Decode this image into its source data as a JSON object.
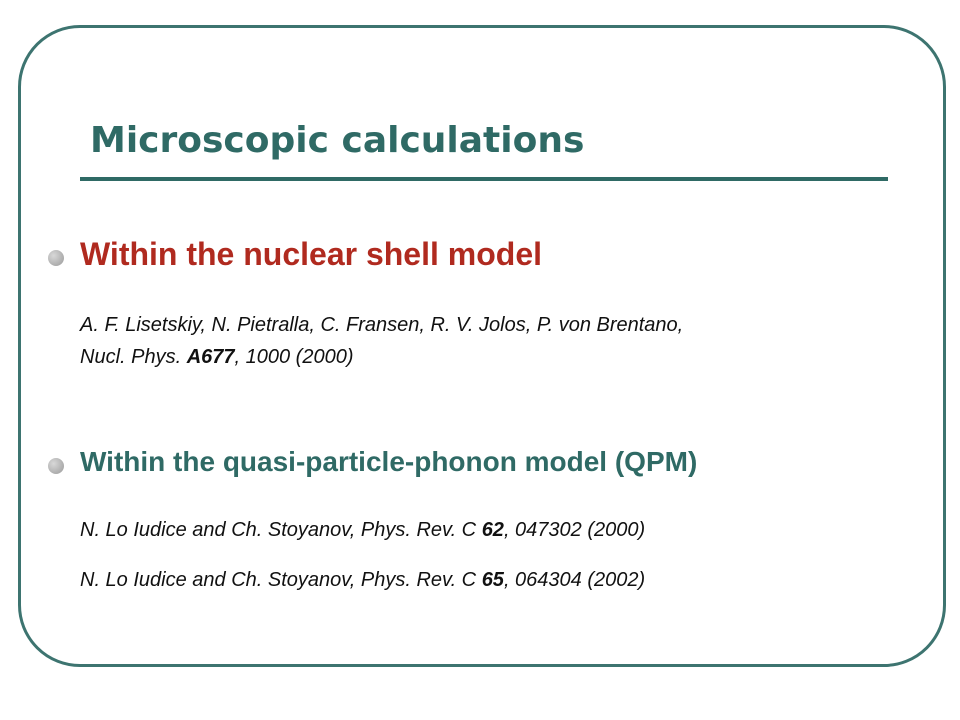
{
  "title": "Microscopic calculations",
  "bullets": [
    {
      "heading": "Within the nuclear shell model",
      "references": [
        {
          "line1": "A. F. Lisetskiy, N. Pietralla, C. Fransen, R. V. Jolos, P. von Brentano,",
          "before": "Nucl. Phys. ",
          "bold": "A677",
          "after": ", 1000 (2000)"
        }
      ]
    },
    {
      "heading": "Within the quasi-particle-phonon model (QPM)",
      "references": [
        {
          "before": "N. Lo Iudice and Ch. Stoyanov, Phys. Rev. C ",
          "bold": "62",
          "after": ", 047302 (2000)"
        },
        {
          "before": "N. Lo Iudice and Ch. Stoyanov, Phys. Rev. C ",
          "bold": "65",
          "after": ", 064304 (2002)"
        }
      ]
    }
  ]
}
